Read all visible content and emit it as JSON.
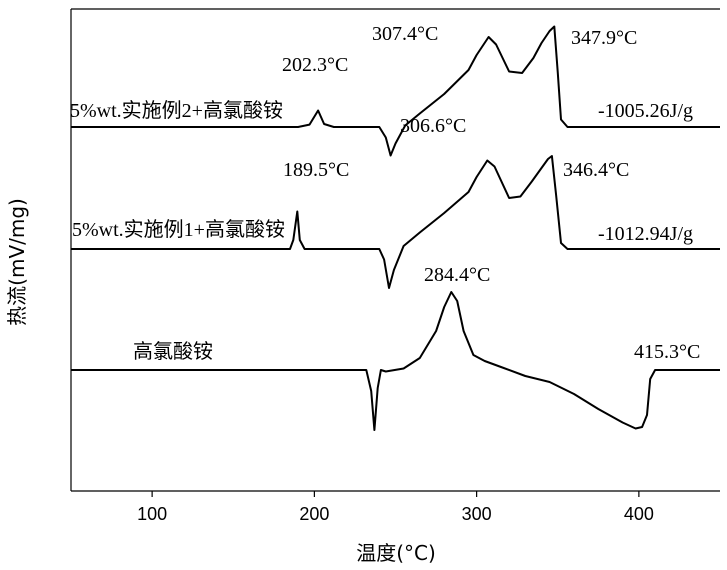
{
  "chart_data": {
    "type": "line",
    "title": "",
    "xlabel": "温度(°C)",
    "ylabel": "热流(mV/mg)",
    "xlim": [
      50,
      450
    ],
    "xticks": [
      100,
      200,
      300,
      400
    ],
    "grid": false,
    "series": [
      {
        "name": "5%wt.实施例2+高氯酸铵",
        "x": [
          50,
          190,
          197,
          202.3,
          206,
          212,
          240,
          244,
          247,
          250,
          256,
          265,
          280,
          295,
          300,
          307.4,
          312,
          320,
          328,
          335,
          340,
          345,
          347.9,
          350,
          352,
          356,
          450
        ],
        "y": [
          0,
          0,
          0.08,
          0.55,
          0.1,
          0,
          0,
          -0.35,
          -0.95,
          -0.55,
          0.05,
          0.45,
          1.1,
          1.9,
          2.4,
          3.0,
          2.75,
          1.85,
          1.8,
          2.3,
          2.8,
          3.2,
          3.35,
          1.8,
          0.25,
          0,
          0
        ],
        "label": "5%wt.实施例2+高氯酸铵"
      },
      {
        "name": "5%wt.实施例1+高氯酸铵",
        "x": [
          50,
          185,
          187,
          189.5,
          191,
          194,
          240,
          243,
          246,
          249,
          255,
          265,
          280,
          295,
          300,
          306.6,
          311,
          320,
          327,
          334,
          340,
          344,
          346.4,
          349,
          352,
          356,
          450
        ],
        "y": [
          0,
          0,
          0.3,
          1.25,
          0.3,
          0,
          0,
          -0.35,
          -1.3,
          -0.7,
          0.1,
          0.55,
          1.2,
          1.9,
          2.4,
          2.95,
          2.75,
          1.7,
          1.75,
          2.25,
          2.7,
          3.0,
          3.1,
          1.8,
          0.2,
          0,
          0
        ],
        "label": "5%wt.实施例1+高氯酸铵",
        "enthalpy": "-1012.94J/g"
      },
      {
        "name": "高氯酸铵",
        "x": [
          50,
          232,
          235,
          237,
          239,
          241,
          244,
          255,
          265,
          275,
          280,
          284.4,
          288,
          292,
          298,
          305,
          315,
          330,
          345,
          360,
          375,
          390,
          398,
          402,
          405,
          407,
          410,
          450
        ],
        "y": [
          0,
          0,
          -0.7,
          -2.0,
          -0.6,
          0,
          -0.05,
          0.05,
          0.4,
          1.3,
          2.1,
          2.6,
          2.3,
          1.3,
          0.5,
          0.3,
          0.1,
          -0.2,
          -0.4,
          -0.8,
          -1.3,
          -1.75,
          -1.95,
          -1.9,
          -1.5,
          -0.3,
          0,
          0
        ],
        "label": "高氯酸铵"
      }
    ],
    "annotations": [
      {
        "text": "307.4°C",
        "x": 307.4,
        "series": 0
      },
      {
        "text": "347.9°C",
        "x": 347.9,
        "series": 0
      },
      {
        "text": "202.3°C",
        "x": 202.3,
        "series": 0
      },
      {
        "text": "-1005.26J/g",
        "series": 0
      },
      {
        "text": "306.6°C",
        "x": 306.6,
        "series": 1
      },
      {
        "text": "189.5°C",
        "x": 189.5,
        "series": 1
      },
      {
        "text": "346.4°C",
        "x": 346.4,
        "series": 1
      },
      {
        "text": "-1012.94J/g",
        "series": 1
      },
      {
        "text": "284.4°C",
        "x": 284.4,
        "series": 2
      },
      {
        "text": "415.3°C",
        "series": 2
      }
    ]
  }
}
